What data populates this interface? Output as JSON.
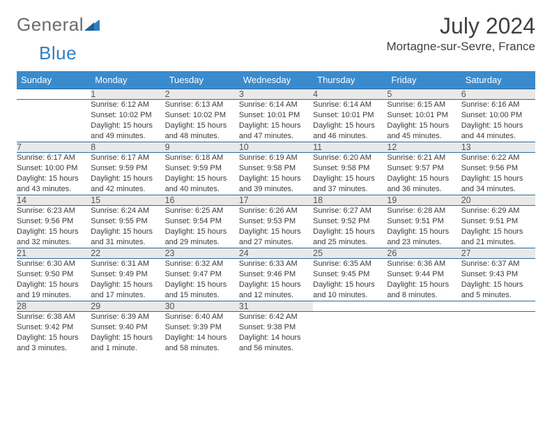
{
  "brand": {
    "part1": "General",
    "part2": "Blue"
  },
  "title": "July 2024",
  "location": "Mortagne-sur-Sevre, France",
  "style": {
    "header_bg": "#3a8bce",
    "header_fg": "#ffffff",
    "daynum_bg": "#e9e9e9",
    "row_border": "#2b6aa0",
    "text_color": "#3a3a3a",
    "title_color": "#404040",
    "logo_gray": "#6b6b6b",
    "logo_blue": "#2f7fc1"
  },
  "weekdays": [
    "Sunday",
    "Monday",
    "Tuesday",
    "Wednesday",
    "Thursday",
    "Friday",
    "Saturday"
  ],
  "weeks": [
    [
      null,
      {
        "n": "1",
        "sr": "Sunrise: 6:12 AM",
        "ss": "Sunset: 10:02 PM",
        "d1": "Daylight: 15 hours",
        "d2": "and 49 minutes."
      },
      {
        "n": "2",
        "sr": "Sunrise: 6:13 AM",
        "ss": "Sunset: 10:02 PM",
        "d1": "Daylight: 15 hours",
        "d2": "and 48 minutes."
      },
      {
        "n": "3",
        "sr": "Sunrise: 6:14 AM",
        "ss": "Sunset: 10:01 PM",
        "d1": "Daylight: 15 hours",
        "d2": "and 47 minutes."
      },
      {
        "n": "4",
        "sr": "Sunrise: 6:14 AM",
        "ss": "Sunset: 10:01 PM",
        "d1": "Daylight: 15 hours",
        "d2": "and 46 minutes."
      },
      {
        "n": "5",
        "sr": "Sunrise: 6:15 AM",
        "ss": "Sunset: 10:01 PM",
        "d1": "Daylight: 15 hours",
        "d2": "and 45 minutes."
      },
      {
        "n": "6",
        "sr": "Sunrise: 6:16 AM",
        "ss": "Sunset: 10:00 PM",
        "d1": "Daylight: 15 hours",
        "d2": "and 44 minutes."
      }
    ],
    [
      {
        "n": "7",
        "sr": "Sunrise: 6:17 AM",
        "ss": "Sunset: 10:00 PM",
        "d1": "Daylight: 15 hours",
        "d2": "and 43 minutes."
      },
      {
        "n": "8",
        "sr": "Sunrise: 6:17 AM",
        "ss": "Sunset: 9:59 PM",
        "d1": "Daylight: 15 hours",
        "d2": "and 42 minutes."
      },
      {
        "n": "9",
        "sr": "Sunrise: 6:18 AM",
        "ss": "Sunset: 9:59 PM",
        "d1": "Daylight: 15 hours",
        "d2": "and 40 minutes."
      },
      {
        "n": "10",
        "sr": "Sunrise: 6:19 AM",
        "ss": "Sunset: 9:58 PM",
        "d1": "Daylight: 15 hours",
        "d2": "and 39 minutes."
      },
      {
        "n": "11",
        "sr": "Sunrise: 6:20 AM",
        "ss": "Sunset: 9:58 PM",
        "d1": "Daylight: 15 hours",
        "d2": "and 37 minutes."
      },
      {
        "n": "12",
        "sr": "Sunrise: 6:21 AM",
        "ss": "Sunset: 9:57 PM",
        "d1": "Daylight: 15 hours",
        "d2": "and 36 minutes."
      },
      {
        "n": "13",
        "sr": "Sunrise: 6:22 AM",
        "ss": "Sunset: 9:56 PM",
        "d1": "Daylight: 15 hours",
        "d2": "and 34 minutes."
      }
    ],
    [
      {
        "n": "14",
        "sr": "Sunrise: 6:23 AM",
        "ss": "Sunset: 9:56 PM",
        "d1": "Daylight: 15 hours",
        "d2": "and 32 minutes."
      },
      {
        "n": "15",
        "sr": "Sunrise: 6:24 AM",
        "ss": "Sunset: 9:55 PM",
        "d1": "Daylight: 15 hours",
        "d2": "and 31 minutes."
      },
      {
        "n": "16",
        "sr": "Sunrise: 6:25 AM",
        "ss": "Sunset: 9:54 PM",
        "d1": "Daylight: 15 hours",
        "d2": "and 29 minutes."
      },
      {
        "n": "17",
        "sr": "Sunrise: 6:26 AM",
        "ss": "Sunset: 9:53 PM",
        "d1": "Daylight: 15 hours",
        "d2": "and 27 minutes."
      },
      {
        "n": "18",
        "sr": "Sunrise: 6:27 AM",
        "ss": "Sunset: 9:52 PM",
        "d1": "Daylight: 15 hours",
        "d2": "and 25 minutes."
      },
      {
        "n": "19",
        "sr": "Sunrise: 6:28 AM",
        "ss": "Sunset: 9:51 PM",
        "d1": "Daylight: 15 hours",
        "d2": "and 23 minutes."
      },
      {
        "n": "20",
        "sr": "Sunrise: 6:29 AM",
        "ss": "Sunset: 9:51 PM",
        "d1": "Daylight: 15 hours",
        "d2": "and 21 minutes."
      }
    ],
    [
      {
        "n": "21",
        "sr": "Sunrise: 6:30 AM",
        "ss": "Sunset: 9:50 PM",
        "d1": "Daylight: 15 hours",
        "d2": "and 19 minutes."
      },
      {
        "n": "22",
        "sr": "Sunrise: 6:31 AM",
        "ss": "Sunset: 9:49 PM",
        "d1": "Daylight: 15 hours",
        "d2": "and 17 minutes."
      },
      {
        "n": "23",
        "sr": "Sunrise: 6:32 AM",
        "ss": "Sunset: 9:47 PM",
        "d1": "Daylight: 15 hours",
        "d2": "and 15 minutes."
      },
      {
        "n": "24",
        "sr": "Sunrise: 6:33 AM",
        "ss": "Sunset: 9:46 PM",
        "d1": "Daylight: 15 hours",
        "d2": "and 12 minutes."
      },
      {
        "n": "25",
        "sr": "Sunrise: 6:35 AM",
        "ss": "Sunset: 9:45 PM",
        "d1": "Daylight: 15 hours",
        "d2": "and 10 minutes."
      },
      {
        "n": "26",
        "sr": "Sunrise: 6:36 AM",
        "ss": "Sunset: 9:44 PM",
        "d1": "Daylight: 15 hours",
        "d2": "and 8 minutes."
      },
      {
        "n": "27",
        "sr": "Sunrise: 6:37 AM",
        "ss": "Sunset: 9:43 PM",
        "d1": "Daylight: 15 hours",
        "d2": "and 5 minutes."
      }
    ],
    [
      {
        "n": "28",
        "sr": "Sunrise: 6:38 AM",
        "ss": "Sunset: 9:42 PM",
        "d1": "Daylight: 15 hours",
        "d2": "and 3 minutes."
      },
      {
        "n": "29",
        "sr": "Sunrise: 6:39 AM",
        "ss": "Sunset: 9:40 PM",
        "d1": "Daylight: 15 hours",
        "d2": "and 1 minute."
      },
      {
        "n": "30",
        "sr": "Sunrise: 6:40 AM",
        "ss": "Sunset: 9:39 PM",
        "d1": "Daylight: 14 hours",
        "d2": "and 58 minutes."
      },
      {
        "n": "31",
        "sr": "Sunrise: 6:42 AM",
        "ss": "Sunset: 9:38 PM",
        "d1": "Daylight: 14 hours",
        "d2": "and 56 minutes."
      },
      null,
      null,
      null
    ]
  ]
}
